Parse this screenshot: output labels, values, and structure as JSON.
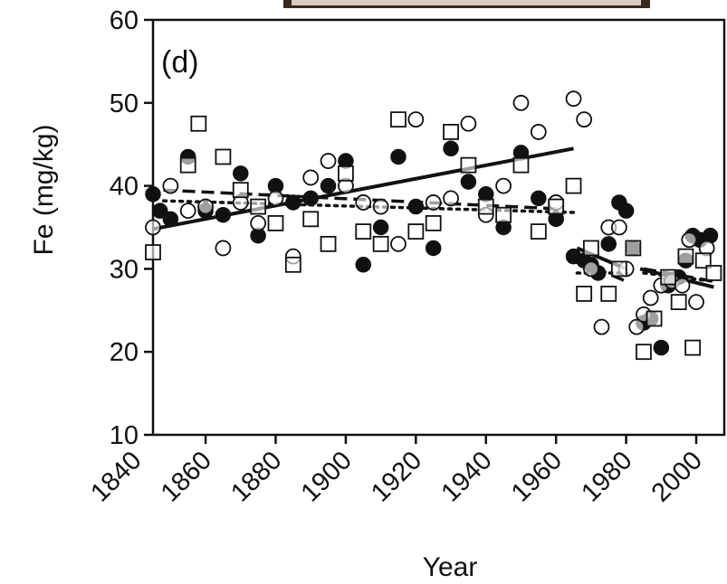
{
  "chart_data": {
    "type": "scatter",
    "panel_label": "(d)",
    "xlabel": "Year",
    "ylabel": "Fe (mg/kg)",
    "xlim": [
      1845,
      2008
    ],
    "ylim": [
      10,
      60
    ],
    "x_ticks": [
      1840,
      1860,
      1880,
      1900,
      1920,
      1940,
      1960,
      1980,
      2000
    ],
    "y_ticks": [
      10,
      20,
      30,
      40,
      50,
      60
    ],
    "legend": "none",
    "grid": false,
    "series": [
      {
        "marker": "filled-circle",
        "points": [
          [
            1845,
            39
          ],
          [
            1847,
            37
          ],
          [
            1850,
            36
          ],
          [
            1855,
            43.5
          ],
          [
            1860,
            37
          ],
          [
            1865,
            36.5
          ],
          [
            1870,
            41.5
          ],
          [
            1875,
            34
          ],
          [
            1880,
            40
          ],
          [
            1885,
            38
          ],
          [
            1890,
            38.5
          ],
          [
            1895,
            40
          ],
          [
            1900,
            43
          ],
          [
            1905,
            30.5
          ],
          [
            1910,
            35
          ],
          [
            1915,
            43.5
          ],
          [
            1920,
            37.5
          ],
          [
            1925,
            32.5
          ],
          [
            1930,
            44.5
          ],
          [
            1935,
            40.5
          ],
          [
            1940,
            39
          ],
          [
            1945,
            35
          ],
          [
            1950,
            44
          ],
          [
            1955,
            38.5
          ],
          [
            1960,
            36
          ],
          [
            1965,
            31.5
          ],
          [
            1968,
            31
          ],
          [
            1970,
            30.5
          ],
          [
            1972,
            29.5
          ],
          [
            1975,
            33
          ],
          [
            1978,
            38
          ],
          [
            1980,
            37
          ],
          [
            1982,
            32.5
          ],
          [
            1985,
            23.5
          ],
          [
            1987,
            24
          ],
          [
            1990,
            20.5
          ],
          [
            1992,
            28
          ],
          [
            1995,
            29
          ],
          [
            1997,
            31
          ],
          [
            1999,
            34
          ],
          [
            2001,
            33.5
          ],
          [
            2004,
            34
          ]
        ]
      },
      {
        "marker": "open-circle",
        "points": [
          [
            1845,
            35
          ],
          [
            1850,
            40
          ],
          [
            1855,
            37
          ],
          [
            1860,
            37.5
          ],
          [
            1865,
            32.5
          ],
          [
            1870,
            38
          ],
          [
            1875,
            35.5
          ],
          [
            1880,
            38.5
          ],
          [
            1885,
            31.5
          ],
          [
            1890,
            41
          ],
          [
            1895,
            43
          ],
          [
            1900,
            40
          ],
          [
            1905,
            38
          ],
          [
            1910,
            37.5
          ],
          [
            1915,
            33
          ],
          [
            1920,
            48
          ],
          [
            1925,
            38
          ],
          [
            1930,
            38.5
          ],
          [
            1935,
            47.5
          ],
          [
            1940,
            36.5
          ],
          [
            1945,
            40
          ],
          [
            1950,
            50
          ],
          [
            1955,
            46.5
          ],
          [
            1960,
            38
          ],
          [
            1965,
            50.5
          ],
          [
            1968,
            48
          ],
          [
            1970,
            30
          ],
          [
            1973,
            23
          ],
          [
            1975,
            35
          ],
          [
            1978,
            35
          ],
          [
            1980,
            30
          ],
          [
            1983,
            23
          ],
          [
            1985,
            24.5
          ],
          [
            1987,
            26.5
          ],
          [
            1990,
            28
          ],
          [
            1993,
            28.5
          ],
          [
            1996,
            28
          ],
          [
            1998,
            33.5
          ],
          [
            2000,
            26
          ],
          [
            2003,
            32.5
          ]
        ]
      },
      {
        "marker": "open-square",
        "points": [
          [
            1845,
            32
          ],
          [
            1855,
            42.5
          ],
          [
            1858,
            47.5
          ],
          [
            1865,
            43.5
          ],
          [
            1870,
            39.5
          ],
          [
            1875,
            37.5
          ],
          [
            1880,
            35.5
          ],
          [
            1885,
            30.5
          ],
          [
            1890,
            36
          ],
          [
            1895,
            33
          ],
          [
            1900,
            41.5
          ],
          [
            1905,
            34.5
          ],
          [
            1910,
            33
          ],
          [
            1915,
            48
          ],
          [
            1920,
            34.5
          ],
          [
            1925,
            35.5
          ],
          [
            1930,
            46.5
          ],
          [
            1935,
            42.5
          ],
          [
            1940,
            37.5
          ],
          [
            1945,
            36.5
          ],
          [
            1950,
            42.5
          ],
          [
            1955,
            34.5
          ],
          [
            1960,
            37.5
          ],
          [
            1965,
            40
          ],
          [
            1968,
            27
          ],
          [
            1970,
            32.5
          ],
          [
            1975,
            27
          ],
          [
            1978,
            30
          ],
          [
            1982,
            32.5
          ],
          [
            1985,
            20
          ],
          [
            1988,
            24
          ],
          [
            1992,
            29
          ],
          [
            1995,
            26
          ],
          [
            1997,
            31.5
          ],
          [
            1999,
            20.5
          ],
          [
            2002,
            31
          ],
          [
            2005,
            29.5
          ]
        ]
      }
    ],
    "trend_lines": [
      {
        "style": "solid",
        "x": [
          1845,
          1965
        ],
        "y": [
          34.8,
          44.5
        ]
      },
      {
        "style": "solid",
        "x": [
          1966,
          1980
        ],
        "y": [
          32.5,
          30
        ]
      },
      {
        "style": "solid",
        "x": [
          1984,
          2005
        ],
        "y": [
          30,
          27.8
        ]
      },
      {
        "style": "dashed",
        "x": [
          1848,
          1962
        ],
        "y": [
          39.5,
          37.2
        ]
      },
      {
        "style": "dashed",
        "x": [
          1966,
          1980
        ],
        "y": [
          31,
          28.5
        ]
      },
      {
        "style": "dashed",
        "x": [
          1985,
          2005
        ],
        "y": [
          30,
          28.5
        ]
      },
      {
        "style": "dotted",
        "x": [
          1848,
          1965
        ],
        "y": [
          38.2,
          36.8
        ]
      },
      {
        "style": "dotted",
        "x": [
          1966,
          1980
        ],
        "y": [
          29.5,
          29.5
        ]
      },
      {
        "style": "dotted",
        "x": [
          1985,
          2005
        ],
        "y": [
          29.5,
          28.5
        ]
      }
    ]
  }
}
